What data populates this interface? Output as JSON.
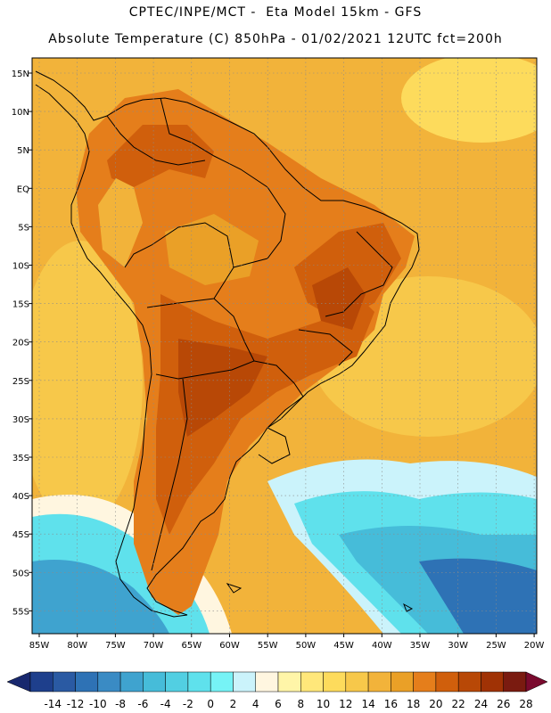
{
  "header": {
    "line1": "CPTEC/INPE/MCT -  Eta Model 15km - GFS",
    "line2": "Absolute Temperature (C) 850hPa - 01/02/2021 12UTC fct=200h"
  },
  "map": {
    "lat_labels": [
      "15N",
      "10N",
      "5N",
      "EQ",
      "5S",
      "10S",
      "15S",
      "20S",
      "25S",
      "30S",
      "35S",
      "40S",
      "45S",
      "50S",
      "55S"
    ],
    "lon_labels": [
      "85W",
      "80W",
      "75W",
      "70W",
      "65W",
      "60W",
      "55W",
      "50W",
      "45W",
      "40W",
      "35W",
      "30W",
      "25W",
      "20W"
    ],
    "grid_style": "dotted",
    "region": "South America"
  },
  "legend": {
    "levels": [
      "-14",
      "-12",
      "-10",
      "-8",
      "-6",
      "-4",
      "-2",
      "0",
      "2",
      "4",
      "6",
      "8",
      "10",
      "12",
      "14",
      "16",
      "18",
      "20",
      "22",
      "24",
      "26",
      "28"
    ],
    "colors": [
      "#1e3f8c",
      "#2a5aa3",
      "#2e72b5",
      "#3a8bc4",
      "#3fa3cf",
      "#46bcd9",
      "#52cfe2",
      "#5fe1ec",
      "#76f3f6",
      "#cbf3fb",
      "#fff6e0",
      "#fff5a8",
      "#ffe77a",
      "#fddb5c",
      "#f7c84a",
      "#f2b33a",
      "#eaa027",
      "#e57e1b",
      "#d05f0c",
      "#b84806",
      "#a03205",
      "#7a1b10"
    ],
    "low_arrow_color": "#18286e",
    "high_arrow_color": "#7a0a2e"
  }
}
